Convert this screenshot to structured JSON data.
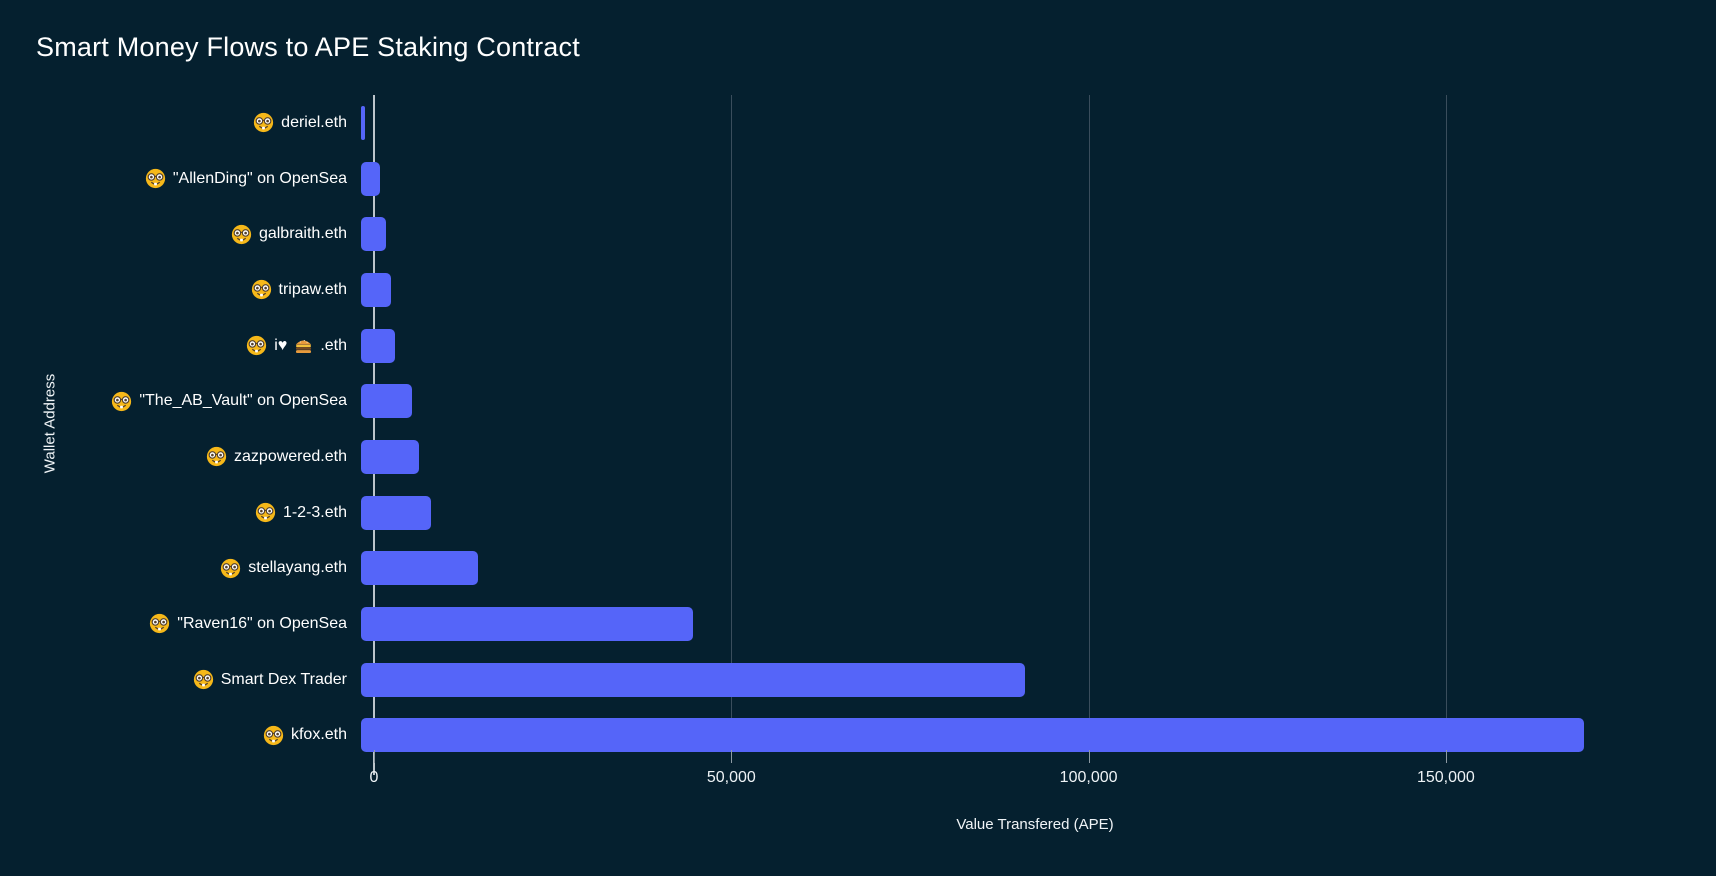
{
  "page": {
    "background_color": "#05202f"
  },
  "chart_data": {
    "type": "bar",
    "orientation": "horizontal",
    "title": "Smart Money Flows to APE Staking Contract",
    "xlabel": "Value Transfered (APE)",
    "ylabel": "Wallet Address",
    "xlim": [
      0,
      185000
    ],
    "grid": true,
    "legend": "none",
    "bar_color": "#5565f9",
    "gridline_color": "#3a4d5c",
    "axis_line_color": "#bcc5cb",
    "row_prefix_icon": "nerd-face-emoji",
    "x_ticks": [
      {
        "value": 0,
        "label": "0"
      },
      {
        "value": 50000,
        "label": "50,000"
      },
      {
        "value": 100000,
        "label": "100,000"
      },
      {
        "value": 150000,
        "label": "150,000"
      }
    ],
    "categories": [
      "🤓 deriel.eth",
      "🤓 \"AllenDing\" on OpenSea",
      "🤓 galbraith.eth",
      "🤓 tripaw.eth",
      "🤓 i❤🍔.eth",
      "🤓 \"The_AB_Vault\" on OpenSea",
      "🤓 zazpowered.eth",
      "🤓 1-2-3.eth",
      "🤓 stellayang.eth",
      "🤓 \"Raven16\" on OpenSea",
      "🤓 Smart Dex Trader",
      "🤓 kfox.eth"
    ],
    "values": [
      500,
      2700,
      3400,
      4200,
      4650,
      7000,
      8000,
      9700,
      16200,
      46000,
      92000,
      169300
    ]
  }
}
